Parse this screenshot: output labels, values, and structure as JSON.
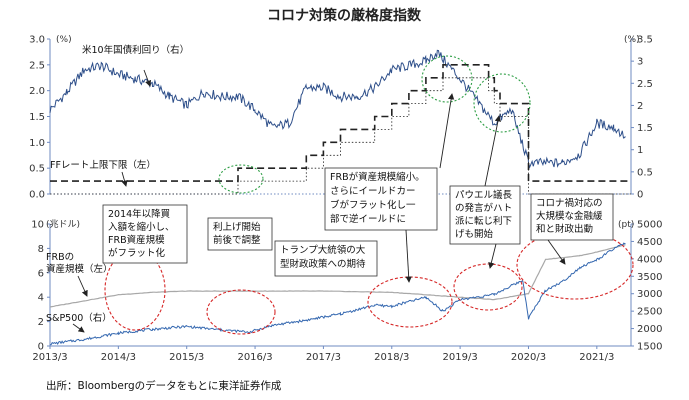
{
  "chart_data": [
    {
      "type": "line",
      "panel": "top",
      "title": "コロナ対策の厳格度指数",
      "left_axis": {
        "unit": "(%)",
        "range": [
          0,
          3.0
        ],
        "ticks": [
          "0.0",
          "0.5",
          "1.0",
          "1.5",
          "2.0",
          "2.5",
          "3.0"
        ]
      },
      "right_axis": {
        "unit": "(%)",
        "range": [
          0,
          3.5
        ],
        "ticks": [
          "0",
          "0.5",
          "1",
          "1.5",
          "2",
          "2.5",
          "3",
          "3.5"
        ]
      },
      "series": [
        {
          "name": "米10年国債利回り（右）",
          "axis": "right",
          "style": "solid",
          "x": [
            "2013/3",
            "2013/6",
            "2013/9",
            "2013/12",
            "2014/3",
            "2014/6",
            "2014/9",
            "2014/12",
            "2015/3",
            "2015/6",
            "2015/9",
            "2015/12",
            "2016/3",
            "2016/6",
            "2016/9",
            "2016/12",
            "2017/3",
            "2017/6",
            "2017/9",
            "2017/12",
            "2018/3",
            "2018/6",
            "2018/9",
            "2018/11",
            "2019/3",
            "2019/6",
            "2019/9",
            "2019/12",
            "2020/3",
            "2020/6",
            "2020/9",
            "2020/12",
            "2021/3",
            "2021/6",
            "2021/8"
          ],
          "values": [
            1.9,
            2.3,
            2.8,
            2.9,
            2.7,
            2.6,
            2.5,
            2.2,
            2.0,
            2.3,
            2.2,
            2.2,
            1.9,
            1.5,
            1.6,
            2.4,
            2.4,
            2.2,
            2.2,
            2.4,
            2.8,
            2.9,
            3.0,
            3.2,
            2.6,
            2.1,
            1.6,
            1.9,
            0.7,
            0.7,
            0.7,
            0.9,
            1.6,
            1.5,
            1.3
          ]
        },
        {
          "name": "FFレート上限下限（左）",
          "axis": "left",
          "style": "dashed-band",
          "x": [
            "2013/3",
            "2015/12",
            "2016/12",
            "2017/3",
            "2017/6",
            "2017/12",
            "2018/3",
            "2018/6",
            "2018/9",
            "2018/12",
            "2019/8",
            "2019/9",
            "2019/10",
            "2020/3",
            "2021/8"
          ],
          "upper": [
            0.25,
            0.5,
            0.75,
            1.0,
            1.25,
            1.5,
            1.75,
            2.0,
            2.25,
            2.5,
            2.25,
            2.0,
            1.75,
            0.25,
            0.25
          ],
          "lower": [
            0.0,
            0.25,
            0.5,
            0.75,
            1.0,
            1.25,
            1.5,
            1.75,
            2.0,
            2.25,
            2.0,
            1.75,
            1.5,
            0.0,
            0.0
          ]
        }
      ]
    },
    {
      "type": "line",
      "panel": "bottom",
      "left_axis": {
        "unit": "(兆ドル)",
        "range": [
          0,
          10
        ],
        "ticks": [
          "0",
          "2",
          "4",
          "6",
          "8",
          "10"
        ]
      },
      "right_axis": {
        "unit": "(pt)",
        "range": [
          1500,
          5000
        ],
        "ticks": [
          "1500",
          "2000",
          "2500",
          "3000",
          "3500",
          "4000",
          "4500",
          "5000"
        ]
      },
      "x_ticks": [
        "2013/3",
        "2014/3",
        "2015/3",
        "2016/3",
        "2017/3",
        "2018/3",
        "2019/3",
        "2020/3",
        "2021/3"
      ],
      "series": [
        {
          "name": "FRBの資産規模（左）",
          "axis": "left",
          "x": [
            "2013/3",
            "2013/9",
            "2014/3",
            "2014/9",
            "2015/3",
            "2016/3",
            "2017/3",
            "2018/3",
            "2018/9",
            "2019/3",
            "2019/9",
            "2020/3",
            "2020/6",
            "2020/12",
            "2021/3",
            "2021/8"
          ],
          "values": [
            3.2,
            3.7,
            4.2,
            4.4,
            4.5,
            4.5,
            4.5,
            4.4,
            4.2,
            4.0,
            3.8,
            4.3,
            7.1,
            7.4,
            7.7,
            8.3
          ]
        },
        {
          "name": "S&P500（右）",
          "axis": "right",
          "x": [
            "2013/3",
            "2013/9",
            "2014/3",
            "2014/9",
            "2015/3",
            "2015/9",
            "2016/2",
            "2016/6",
            "2016/12",
            "2017/6",
            "2017/12",
            "2018/3",
            "2018/9",
            "2018/12",
            "2019/3",
            "2019/9",
            "2019/12",
            "2020/2",
            "2020/3",
            "2020/6",
            "2020/9",
            "2020/12",
            "2021/3",
            "2021/6",
            "2021/8"
          ],
          "values": [
            1560,
            1690,
            1870,
            1980,
            2060,
            1960,
            1900,
            2090,
            2240,
            2420,
            2670,
            2640,
            2900,
            2500,
            2830,
            2980,
            3230,
            3380,
            2300,
            3100,
            3350,
            3750,
            3970,
            4290,
            4450
          ]
        }
      ]
    }
  ],
  "labels": {
    "treasury": "米10年国債利回り（右）",
    "ffrate": "FFレート上限下限（左）",
    "frb_line1": "FRBの",
    "frb_line2": "資産規模（左）",
    "sp500": "S&P500（右）"
  },
  "annotations": {
    "a1": [
      "2014年以降買",
      "入額を縮小し、",
      "FRB資産規模",
      "がフラット化"
    ],
    "a2": [
      "利上げ開始",
      "前後で調整"
    ],
    "a3": [
      "トランプ大統領の大",
      "型財政政策への期待"
    ],
    "a4": [
      "FRBが資産規模縮小。",
      "さらにイールドカー",
      "ブがフラット化し一",
      "部で逆イールドに"
    ],
    "a5": [
      "パウエル議長",
      "の発言がハト",
      "派に転じ利下",
      "げも開始"
    ],
    "a6": [
      "コロナ禍対応の",
      "大規模な金融緩",
      "和と財政出動"
    ]
  },
  "source": "出所：Bloombergのデータをもとに東洋証券作成",
  "colors": {
    "treasury": "#2e4f8a",
    "sp500": "#3568b0",
    "frb": "#a8a8a8",
    "ffrate": "#222222",
    "red_circle": "#d62828",
    "green_circle": "#2e9e45",
    "axis_line": "#6f8bc2"
  }
}
